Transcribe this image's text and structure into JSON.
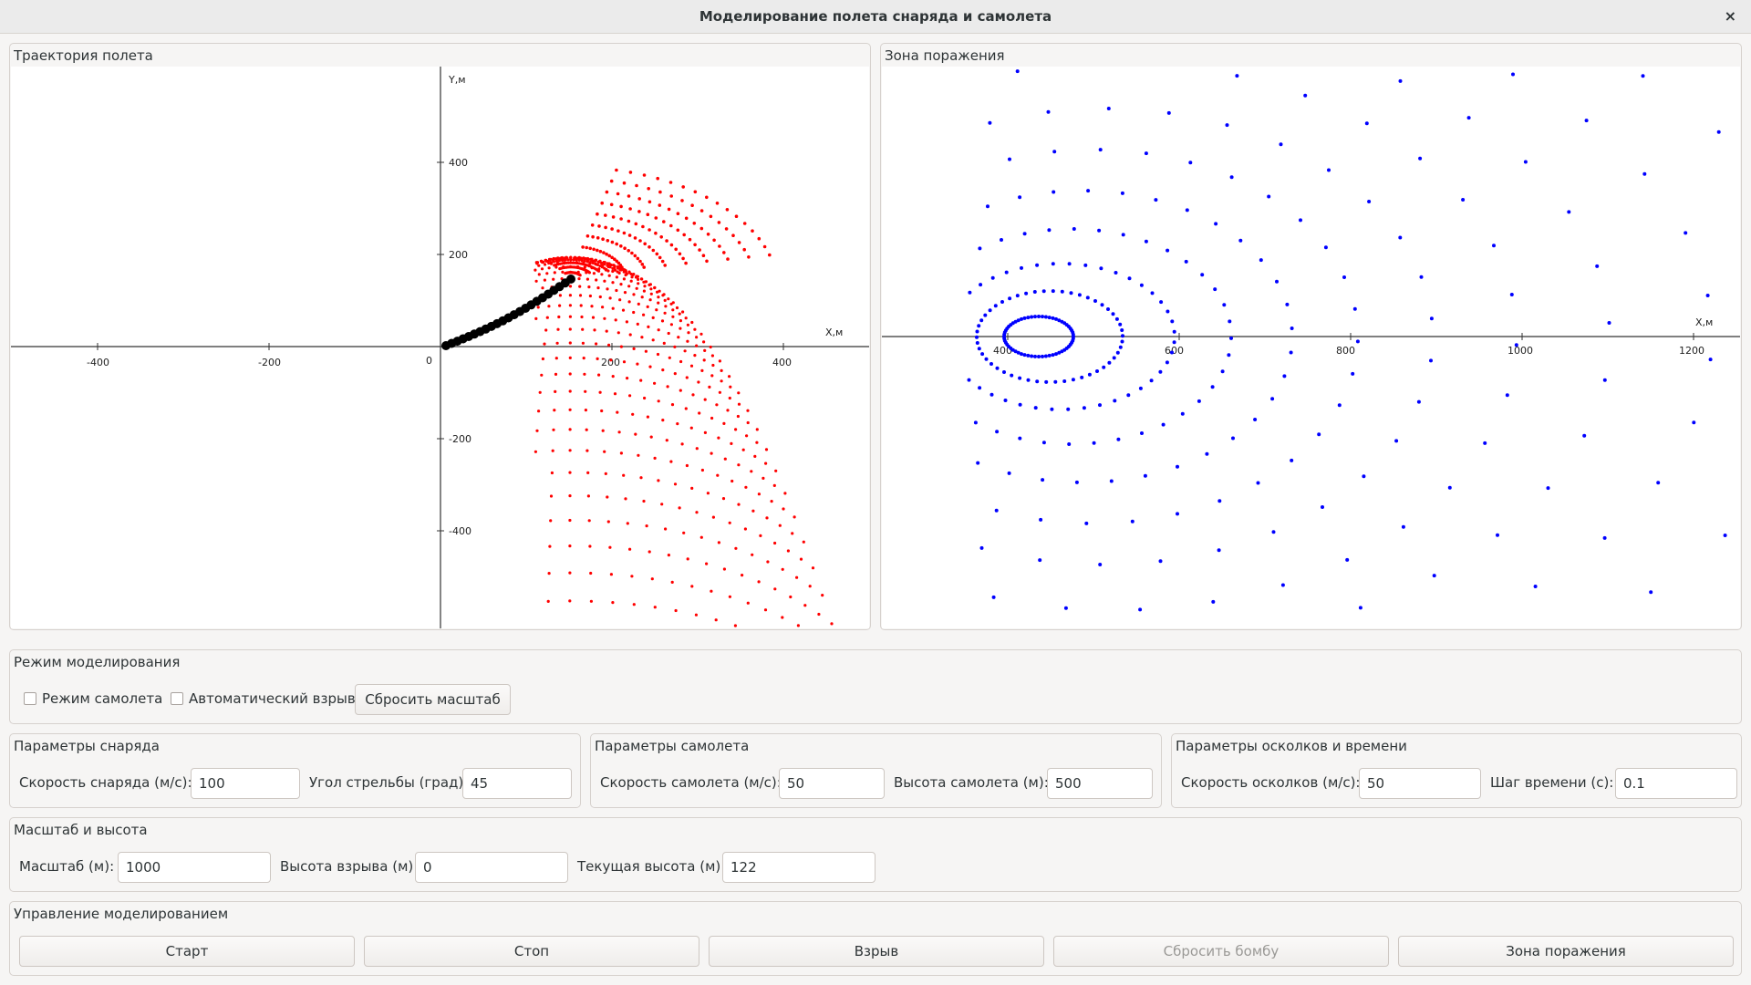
{
  "window": {
    "title": "Моделирование полета снаряда и самолета",
    "close_glyph": "×"
  },
  "trajectory": {
    "title": "Траектория полета",
    "x_axis_label": "X,м",
    "y_axis_label": "Y,м",
    "x_ticks": [
      "-400",
      "-200",
      "0",
      "200",
      "400"
    ],
    "y_ticks": [
      "400",
      "200",
      "-200",
      "-400"
    ],
    "origin_label": "0",
    "projectile_color": "#000000",
    "fragment_color": "#ff0000"
  },
  "kill_zone": {
    "title": "Зона поражения",
    "x_axis_label": "X,м",
    "x_ticks": [
      "400",
      "600",
      "800",
      "1000",
      "1200"
    ],
    "point_color": "#0000ff"
  },
  "mode": {
    "title": "Режим моделирования",
    "plane_mode_label": "Режим самолета",
    "auto_burst_label": "Автоматический взрыв",
    "reset_scale_label": "Сбросить масштаб"
  },
  "projectile_params": {
    "title": "Параметры снаряда",
    "speed_label": "Скорость снаряда (м/с):",
    "speed_value": "100",
    "angle_label": "Угол стрельбы (град):",
    "angle_value": "45"
  },
  "plane_params": {
    "title": "Параметры самолета",
    "speed_label": "Скорость самолета (м/с):",
    "speed_value": "50",
    "height_label": "Высота самолета (м):",
    "height_value": "500"
  },
  "fragment_params": {
    "title": "Параметры осколков и времени",
    "speed_label": "Скорость осколков (м/с):",
    "speed_value": "50",
    "step_label": "Шаг времени (с):",
    "step_value": "0.1"
  },
  "scale": {
    "title": "Масштаб и высота",
    "scale_label": "Масштаб (м):",
    "scale_value": "1000",
    "burst_height_label": "Высота взрыва (м):",
    "burst_height_value": "0",
    "current_height_label": "Текущая высота (м):",
    "current_height_value": "122"
  },
  "control": {
    "title": "Управление моделированием",
    "start_label": "Старт",
    "stop_label": "Стоп",
    "burst_label": "Взрыв",
    "drop_bomb_label": "Сбросить бомбу",
    "zone_label": "Зона поражения"
  }
}
